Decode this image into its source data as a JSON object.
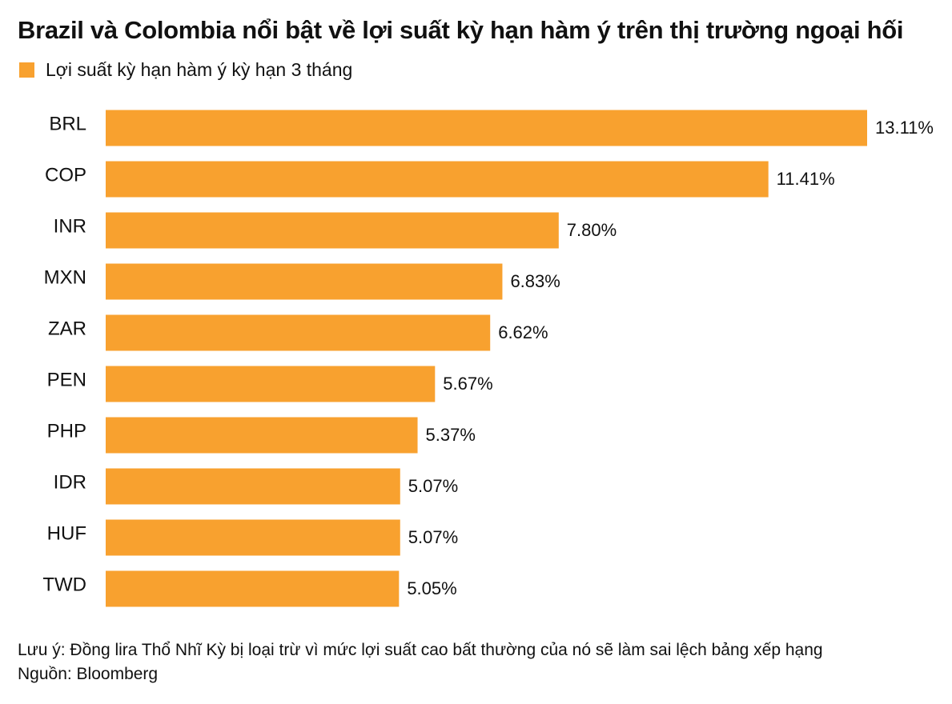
{
  "chart_data": {
    "type": "bar",
    "orientation": "horizontal",
    "title": "Brazil và Colombia nổi bật về lợi suất kỳ hạn hàm ý trên thị trường ngoại hối",
    "legend": "Lợi suất kỳ hạn hàm ý kỳ hạn 3 tháng",
    "categories": [
      "BRL",
      "COP",
      "INR",
      "MXN",
      "ZAR",
      "PEN",
      "PHP",
      "IDR",
      "HUF",
      "TWD"
    ],
    "values": [
      13.11,
      11.41,
      7.8,
      6.83,
      6.62,
      5.67,
      5.37,
      5.07,
      5.07,
      5.05
    ],
    "value_labels": [
      "13.11%",
      "11.41%",
      "7.80%",
      "6.83%",
      "6.62%",
      "5.67%",
      "5.37%",
      "5.07%",
      "5.07%",
      "5.05%"
    ],
    "unit": "%",
    "xlim": [
      0,
      13.11
    ],
    "grid": false,
    "legend_position": "top-left",
    "bar_color": "#F8A12F"
  },
  "footer": {
    "note": "Lưu ý: Đồng lira Thổ Nhĩ Kỳ bị loại trừ vì mức lợi suất cao bất thường của nó sẽ làm sai lệch bảng xếp hạng",
    "source": "Nguồn: Bloomberg"
  }
}
